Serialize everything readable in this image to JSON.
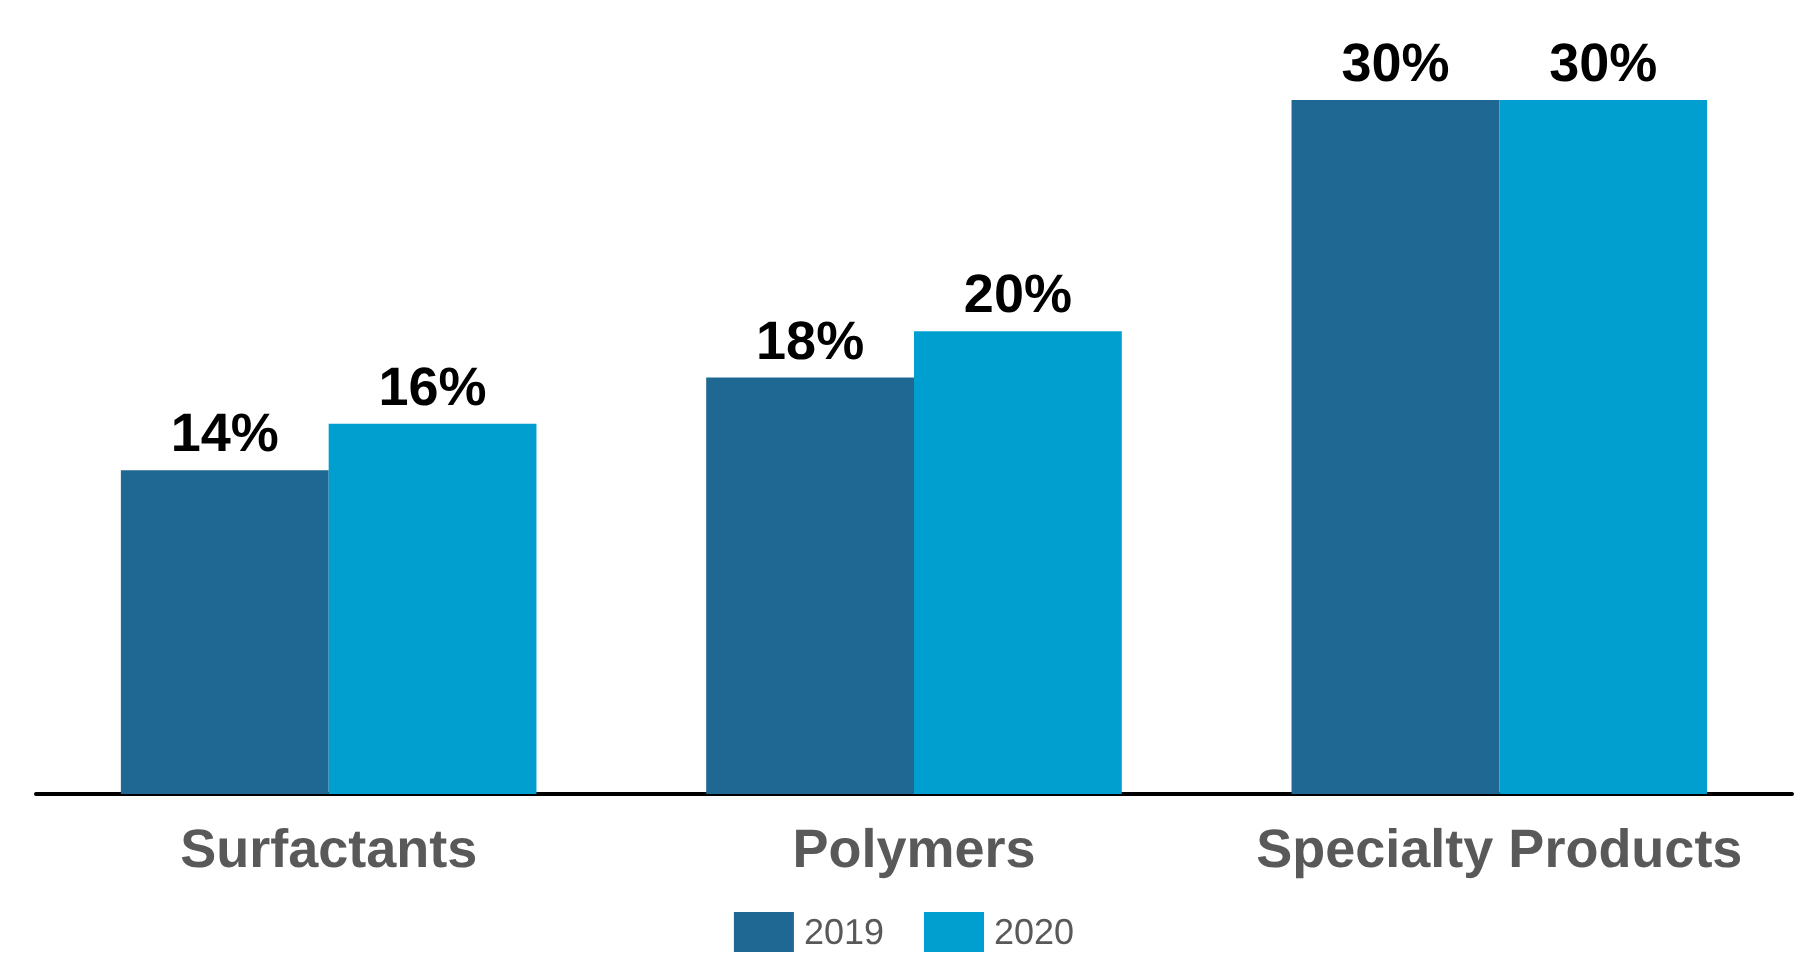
{
  "chart_data": {
    "type": "bar",
    "categories": [
      "Surfactants",
      "Polymers",
      "Specialty Products"
    ],
    "series": [
      {
        "name": "2019",
        "color": "#1f6893",
        "values": [
          14,
          18,
          30
        ],
        "value_labels": [
          "14%",
          "18%",
          "30%"
        ]
      },
      {
        "name": "2020",
        "color": "#009fd0",
        "values": [
          16,
          20,
          30
        ],
        "value_labels": [
          "16%",
          "20%",
          "30%"
        ]
      }
    ],
    "legend": "bottom"
  }
}
